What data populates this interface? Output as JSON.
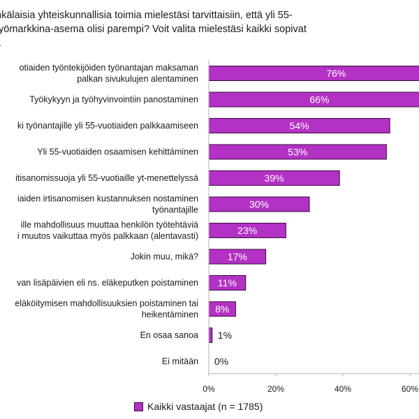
{
  "chart_data": {
    "type": "bar",
    "orientation": "horizontal",
    "title": "nkälaisia yhteiskunnallisia toimia mielestäsi tarvittaisiin, että yli 55-\ntyömarkkina-asema olisi parempi? Voit valita mielestäsi kaikki sopivat\n:.",
    "categories": [
      [
        "otiaiden työntekijöiden työnantajan maksaman",
        "palkan sivukulujen alentaminen"
      ],
      [
        "Työkykyyn ja työhyvinvointiin panostaminen"
      ],
      [
        "ki työnantajille yli 55-vuotiaiden palkkaamiseen"
      ],
      [
        "Yli 55-vuotiaiden osaamisen kehittäminen"
      ],
      [
        "itisanomissuoja yli 55-vuotiaille yt-menettelyssä"
      ],
      [
        "iaiden irtisanomisen kustannuksen nostaminen",
        "työnantajille"
      ],
      [
        "ille mahdollisuus muuttaa henkilön työtehtäviä",
        "i muutos vaikuttaa myös palkkaan (alentavasti)"
      ],
      [
        "Jokin muu, mikä?"
      ],
      [
        "van lisäpäivien eli ns. eläkeputken poistaminen"
      ],
      [
        "eläköitymisen mahdollisuuksien poistaminen tai",
        "heikentäminen"
      ],
      [
        "En osaa sanoa"
      ],
      [
        "Ei mitään"
      ]
    ],
    "series": [
      {
        "name": "Kaikki vastaajat (n = 1785)",
        "values": [
          76,
          66,
          54,
          53,
          39,
          30,
          23,
          17,
          11,
          8,
          1,
          0
        ],
        "value_labels": [
          "76%",
          "66%",
          "54%",
          "53%",
          "39%",
          "30%",
          "23%",
          "17%",
          "11%",
          "8%",
          "1%",
          "0%"
        ]
      }
    ],
    "xlim": [
      0,
      80
    ],
    "xticks": [
      0,
      20,
      40,
      60
    ],
    "xtick_labels": [
      "0%",
      "20%",
      "40%",
      "60%"
    ],
    "xlabel": "",
    "ylabel": "",
    "grid": false,
    "legend_position": "bottom",
    "bar_color": "#b331c4",
    "bar_edge_color": "#3a0f40",
    "axis_color": "#b0b0b0"
  }
}
